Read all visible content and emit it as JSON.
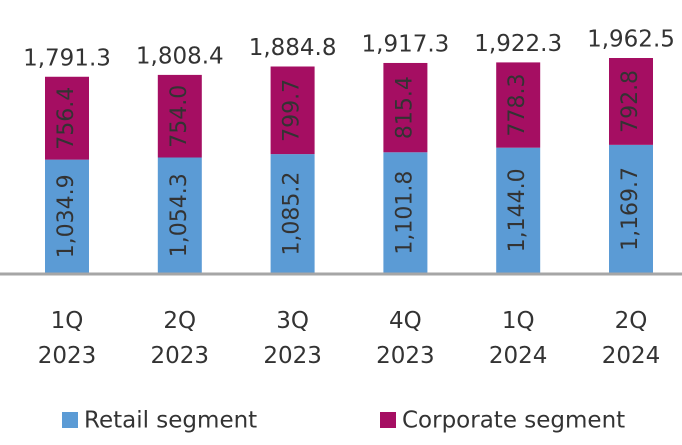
{
  "chart_data": {
    "type": "stacked_bar",
    "categories": [
      "1Q\n2023",
      "2Q\n2023",
      "3Q\n2023",
      "4Q\n2023",
      "1Q\n2024",
      "2Q\n2024"
    ],
    "series": [
      {
        "name": "Retail segment",
        "color": "#5b9bd5",
        "values": [
          1034.9,
          1054.3,
          1085.2,
          1101.8,
          1144.0,
          1169.7
        ],
        "value_labels": [
          "1,034.9",
          "1,054.3",
          "1,085.2",
          "1,101.8",
          "1,144.0",
          "1,169.7"
        ]
      },
      {
        "name": "Corporate segment",
        "color": "#a50e62",
        "values": [
          756.4,
          754.0,
          799.7,
          815.4,
          778.3,
          792.8
        ],
        "value_labels": [
          "756.4",
          "754.0",
          "799.7",
          "815.4",
          "778.3",
          "792.8"
        ]
      }
    ],
    "totals": [
      1791.3,
      1808.4,
      1884.8,
      1917.3,
      1922.3,
      1962.5
    ],
    "total_labels": [
      "1,791.3",
      "1,808.4",
      "1,884.8",
      "1,917.3",
      "1,922.3",
      "1,962.5"
    ]
  }
}
